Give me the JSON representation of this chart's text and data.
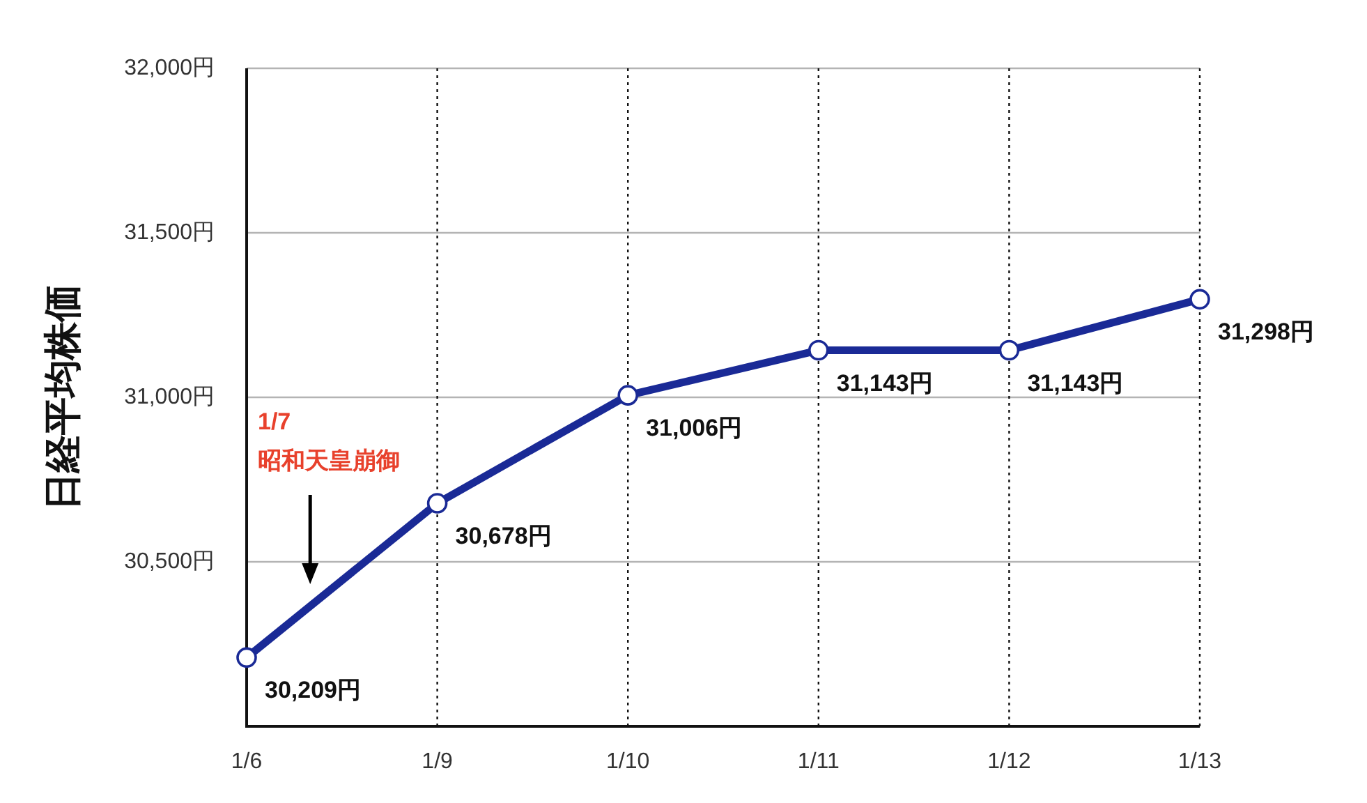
{
  "chart_data": {
    "type": "line",
    "ylabel": "日経平均株価",
    "categories": [
      "1/6",
      "1/9",
      "1/10",
      "1/11",
      "1/12",
      "1/13"
    ],
    "series": [
      {
        "color": "#1a2a96",
        "values": [
          30209,
          30678,
          31006,
          31143,
          31143,
          31298
        ],
        "value_labels": [
          "30,209円",
          "30,678円",
          "31,006円",
          "31,143円",
          "31,143円",
          "31,298円"
        ]
      }
    ],
    "ylim": [
      30000,
      32000
    ],
    "yticks": [
      {
        "value": 30500,
        "label": "30,500円"
      },
      {
        "value": 31000,
        "label": "31,000円"
      },
      {
        "value": 31500,
        "label": "31,500円"
      },
      {
        "value": 32000,
        "label": "32,000円"
      }
    ],
    "grid": true,
    "marker": "circle",
    "line_style": "solid",
    "annotations": [
      "1/7\n昭和天皇崩御"
    ]
  }
}
